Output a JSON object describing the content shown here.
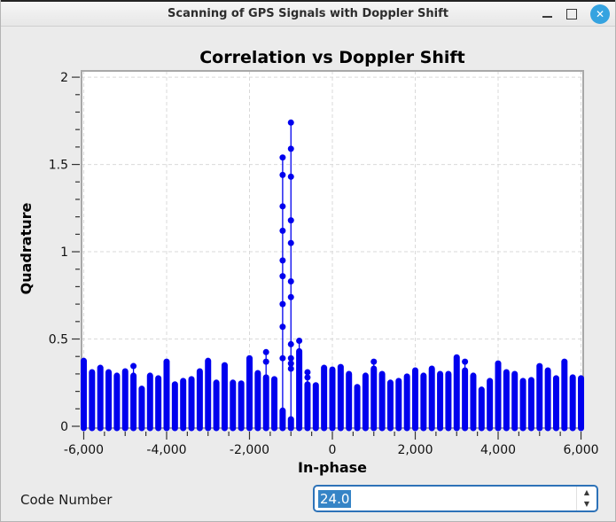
{
  "window": {
    "title": "Scanning of GPS Signals with Doppler Shift",
    "buttons": {
      "minimize": "minimize",
      "maximize": "maximize",
      "close": "✕"
    }
  },
  "controls": {
    "code_number_label": "Code Number",
    "code_number_value": "24.0",
    "spin_up_icon": "▲",
    "spin_down_icon": "▼"
  },
  "colors": {
    "marker": "#0000ee",
    "frame": "#a8a8a8",
    "grid": "#d9d9d9",
    "tick": "#333333",
    "plot_bg": "#ffffff",
    "figure_bg": "#ebebeb",
    "close_button": "#35a3e0",
    "selection": "#3584c6",
    "focus_border": "#2d72b8"
  },
  "chart_data": {
    "type": "scatter",
    "subtype": "stem-scatter",
    "title": "Correlation vs Doppler Shift",
    "xlabel": "In-phase",
    "ylabel": "Quadrature",
    "xlim": [
      -6053,
      6053
    ],
    "ylim": [
      0,
      2.036
    ],
    "grid": "dashed-major",
    "legend": "none",
    "xticks": {
      "major": [
        -6000,
        -4000,
        -2000,
        0,
        2000,
        4000,
        6000
      ],
      "labels": [
        "-6,000",
        "-4,000",
        "-2,000",
        "0",
        "2,000",
        "4,000",
        "6,000"
      ],
      "minor_step": 500
    },
    "yticks": {
      "major": [
        0,
        0.5,
        1,
        1.5,
        2
      ],
      "labels": [
        "0",
        "0.5",
        "1",
        "1.5",
        "2"
      ],
      "minor_step": 0.1
    },
    "x_step": 200,
    "stems": [
      {
        "x": -6000,
        "bar": 0.385
      },
      {
        "x": -5800,
        "bar": 0.32
      },
      {
        "x": -5600,
        "bar": 0.345
      },
      {
        "x": -5400,
        "bar": 0.32
      },
      {
        "x": -5200,
        "bar": 0.3
      },
      {
        "x": -5000,
        "bar": 0.325
      },
      {
        "x": -4800,
        "bar": 0.3,
        "dots": [
          0.345
        ]
      },
      {
        "x": -4600,
        "bar": 0.225
      },
      {
        "x": -4400,
        "bar": 0.3
      },
      {
        "x": -4200,
        "bar": 0.285
      },
      {
        "x": -4000,
        "bar": 0.38
      },
      {
        "x": -3800,
        "bar": 0.25
      },
      {
        "x": -3600,
        "bar": 0.27
      },
      {
        "x": -3400,
        "bar": 0.28
      },
      {
        "x": -3200,
        "bar": 0.325
      },
      {
        "x": -3000,
        "bar": 0.385
      },
      {
        "x": -2800,
        "bar": 0.26
      },
      {
        "x": -2600,
        "bar": 0.36
      },
      {
        "x": -2400,
        "bar": 0.26
      },
      {
        "x": -2200,
        "bar": 0.255
      },
      {
        "x": -2000,
        "bar": 0.4
      },
      {
        "x": -1800,
        "bar": 0.315
      },
      {
        "x": -1600,
        "bar": 0.29,
        "dots": [
          0.425,
          0.37
        ]
      },
      {
        "x": -1400,
        "bar": 0.28
      },
      {
        "x": -1200,
        "bar": 0.1,
        "dots": [
          1.54,
          1.44,
          1.26,
          1.12,
          0.95,
          0.86,
          0.7,
          0.57,
          0.39
        ]
      },
      {
        "x": -1000,
        "bar": 0.05,
        "dots": [
          1.74,
          1.59,
          1.43,
          1.18,
          1.05,
          0.83,
          0.74,
          0.47,
          0.39,
          0.36,
          0.33
        ]
      },
      {
        "x": -800,
        "bar": 0.44,
        "dots": [
          0.49
        ]
      },
      {
        "x": -600,
        "bar": 0.25,
        "dots": [
          0.31,
          0.28
        ]
      },
      {
        "x": -400,
        "bar": 0.245
      },
      {
        "x": -200,
        "bar": 0.345
      },
      {
        "x": 0,
        "bar": 0.335
      },
      {
        "x": 200,
        "bar": 0.35
      },
      {
        "x": 400,
        "bar": 0.31
      },
      {
        "x": 600,
        "bar": 0.235
      },
      {
        "x": 800,
        "bar": 0.3
      },
      {
        "x": 1000,
        "bar": 0.34,
        "dots": [
          0.37
        ]
      },
      {
        "x": 1200,
        "bar": 0.31
      },
      {
        "x": 1400,
        "bar": 0.26
      },
      {
        "x": 1600,
        "bar": 0.27
      },
      {
        "x": 1800,
        "bar": 0.295
      },
      {
        "x": 2000,
        "bar": 0.33
      },
      {
        "x": 2200,
        "bar": 0.3
      },
      {
        "x": 2400,
        "bar": 0.34
      },
      {
        "x": 2600,
        "bar": 0.31
      },
      {
        "x": 2800,
        "bar": 0.31
      },
      {
        "x": 3000,
        "bar": 0.405
      },
      {
        "x": 3200,
        "bar": 0.33,
        "dots": [
          0.37
        ]
      },
      {
        "x": 3400,
        "bar": 0.3
      },
      {
        "x": 3600,
        "bar": 0.22
      },
      {
        "x": 3800,
        "bar": 0.27
      },
      {
        "x": 4000,
        "bar": 0.37
      },
      {
        "x": 4200,
        "bar": 0.32
      },
      {
        "x": 4400,
        "bar": 0.31
      },
      {
        "x": 4600,
        "bar": 0.27
      },
      {
        "x": 4800,
        "bar": 0.275
      },
      {
        "x": 5000,
        "bar": 0.355
      },
      {
        "x": 5200,
        "bar": 0.33
      },
      {
        "x": 5400,
        "bar": 0.285
      },
      {
        "x": 5600,
        "bar": 0.38
      },
      {
        "x": 5800,
        "bar": 0.29
      },
      {
        "x": 6000,
        "bar": 0.285
      }
    ],
    "peak": {
      "x": -1000,
      "y": 1.74
    }
  }
}
